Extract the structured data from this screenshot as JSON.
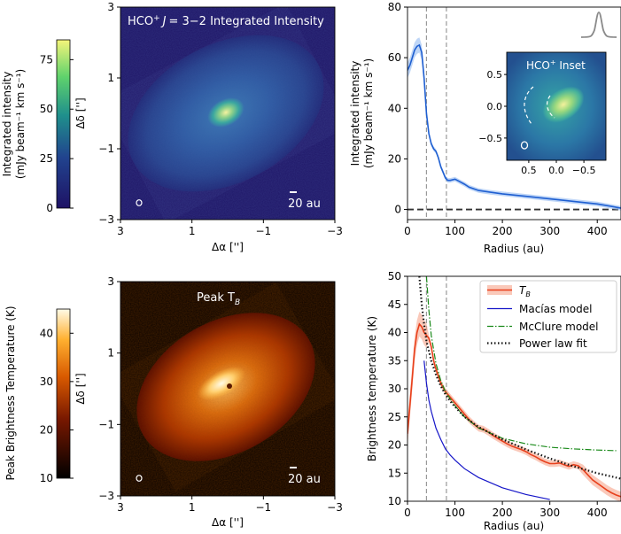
{
  "chart_data": [
    {
      "id": "hco-map",
      "type": "heatmap",
      "title": "HCO$^+$ J = 3−2 Integrated Intensity",
      "title_parts": [
        "HCO",
        "+",
        "J",
        "= 3−2 Integrated Intensity"
      ],
      "xlabel": "Δα ['']",
      "ylabel": "Δδ ['']",
      "xlim": [
        3,
        -3
      ],
      "ylim": [
        -3,
        3
      ],
      "xticks": [
        "3",
        "1",
        "−1",
        "−3"
      ],
      "yticks": [
        "3",
        "1",
        "−1",
        "−3"
      ],
      "scalebar": "20 au",
      "colormap": "viridis-like",
      "colorbar": {
        "label_lines": [
          "Integrated intensity",
          "(mJy beam⁻¹ km s⁻¹)"
        ],
        "range": [
          0,
          85
        ],
        "ticks": [
          "0",
          "25",
          "50",
          "75"
        ],
        "tick_values": [
          0,
          25,
          50,
          75
        ]
      }
    },
    {
      "id": "hco-profile",
      "type": "line",
      "xlabel": "Radius (au)",
      "ylabel_lines": [
        "Integrated intensity",
        "(mJy beam⁻¹ km s⁻¹)"
      ],
      "xlim": [
        0,
        450
      ],
      "ylim": [
        -4,
        80
      ],
      "xticks": [
        "0",
        "100",
        "200",
        "300",
        "400"
      ],
      "yticks": [
        "0",
        "20",
        "40",
        "60",
        "80"
      ],
      "vlines": [
        40,
        82
      ],
      "hline": 0,
      "series": [
        {
          "color": "#1f5fd1",
          "x": [
            0,
            5,
            10,
            15,
            20,
            25,
            30,
            35,
            40,
            45,
            50,
            55,
            60,
            65,
            70,
            80,
            85,
            90,
            100,
            110,
            120,
            130,
            150,
            175,
            200,
            250,
            300,
            350,
            400,
            430,
            450
          ],
          "y": [
            55,
            57,
            60,
            63,
            64.5,
            65,
            62,
            52,
            38,
            30,
            26,
            24,
            23,
            20.5,
            17,
            12.5,
            11.5,
            11.5,
            12,
            11,
            10,
            8.8,
            7.5,
            6.8,
            6.2,
            5.2,
            4.2,
            3.2,
            2.2,
            1.2,
            0.5
          ]
        }
      ],
      "inset": {
        "title_parts": [
          "HCO",
          "+",
          " Inset"
        ],
        "xlim": [
          0.9,
          -0.9
        ],
        "ylim": [
          -0.85,
          0.85
        ],
        "xticks": [
          "0.5",
          "0.0",
          "−0.5"
        ],
        "yticks": [
          "0.5",
          "0.0",
          "−0.5"
        ]
      }
    },
    {
      "id": "peak-map",
      "type": "heatmap",
      "title": "Peak T_B",
      "title_parts": [
        "Peak T",
        "B"
      ],
      "xlabel": "Δα ['']",
      "ylabel": "Δδ ['']",
      "xlim": [
        3,
        -3
      ],
      "ylim": [
        -3,
        3
      ],
      "xticks": [
        "3",
        "1",
        "−1",
        "−3"
      ],
      "yticks": [
        "3",
        "1",
        "−1",
        "−3"
      ],
      "scalebar": "20 au",
      "colormap": "afmhot-like",
      "colorbar": {
        "label": "Peak Brightness Temperature (K)",
        "range": [
          10,
          45
        ],
        "ticks": [
          "10",
          "20",
          "30",
          "40"
        ],
        "tick_values": [
          10,
          20,
          30,
          40
        ]
      }
    },
    {
      "id": "tb-profile",
      "type": "line",
      "xlabel": "Radius (au)",
      "ylabel": "Brightness temperature (K)",
      "xlim": [
        0,
        450
      ],
      "ylim": [
        10,
        50
      ],
      "xticks": [
        "0",
        "100",
        "200",
        "300",
        "400"
      ],
      "yticks": [
        "10",
        "15",
        "20",
        "25",
        "30",
        "35",
        "40",
        "45",
        "50"
      ],
      "vlines": [
        40,
        82
      ],
      "legend": "top-right",
      "series": [
        {
          "name": "T_B",
          "name_parts": [
            "T",
            "B"
          ],
          "color": "#e8401c",
          "style": "solid-band",
          "x": [
            0,
            5,
            10,
            15,
            20,
            25,
            30,
            35,
            40,
            45,
            50,
            55,
            60,
            70,
            80,
            85,
            90,
            100,
            110,
            120,
            130,
            140,
            150,
            160,
            170,
            180,
            190,
            200,
            210,
            220,
            230,
            240,
            250,
            260,
            270,
            280,
            290,
            300,
            310,
            320,
            330,
            340,
            350,
            360,
            370,
            380,
            390,
            400,
            410,
            420,
            430,
            440,
            450
          ],
          "y": [
            22,
            27,
            32,
            37,
            40,
            41.5,
            41,
            40,
            39.5,
            39,
            37.5,
            35,
            33.5,
            31,
            29.5,
            29,
            28.5,
            27.5,
            26.5,
            25.5,
            24.5,
            23.7,
            23,
            22.8,
            22.3,
            21.7,
            21.2,
            20.7,
            20.2,
            19.8,
            19.5,
            19.2,
            18.8,
            18.3,
            17.9,
            17.4,
            17,
            16.7,
            16.7,
            16.8,
            16.5,
            16.2,
            16.5,
            16.3,
            15.6,
            14.7,
            13.8,
            13.2,
            12.6,
            12,
            11.5,
            11.1,
            10.8
          ]
        },
        {
          "name": "Macías model",
          "color": "#1515c8",
          "style": "solid",
          "x": [
            35,
            40,
            45,
            50,
            60,
            70,
            80,
            90,
            100,
            120,
            150,
            200,
            250,
            300
          ],
          "y": [
            35,
            31,
            28,
            26,
            23,
            21,
            19.3,
            18.2,
            17.3,
            15.8,
            14.2,
            12.4,
            11.2,
            10.3
          ]
        },
        {
          "name": "McClure model",
          "color": "#1a8a1a",
          "style": "dashdot",
          "x": [
            40,
            45,
            50,
            60,
            70,
            80,
            90,
            100,
            120,
            150,
            200,
            250,
            300,
            350,
            400,
            440
          ],
          "y": [
            50,
            44,
            39.5,
            34.5,
            31.5,
            29.5,
            28.2,
            27,
            25,
            23,
            21.2,
            20.2,
            19.6,
            19.3,
            19.1,
            19
          ]
        },
        {
          "name": "Power law fit",
          "color": "#111111",
          "style": "dotted",
          "x": [
            25,
            30,
            35,
            40,
            50,
            60,
            70,
            80,
            90,
            100,
            120,
            150,
            200,
            250,
            300,
            350,
            400,
            450
          ],
          "y": [
            50,
            45,
            41.5,
            38.5,
            35,
            32.5,
            30.5,
            29,
            27.8,
            26.8,
            25,
            23.2,
            21,
            19.2,
            17.6,
            16.2,
            15,
            14
          ]
        }
      ]
    }
  ]
}
